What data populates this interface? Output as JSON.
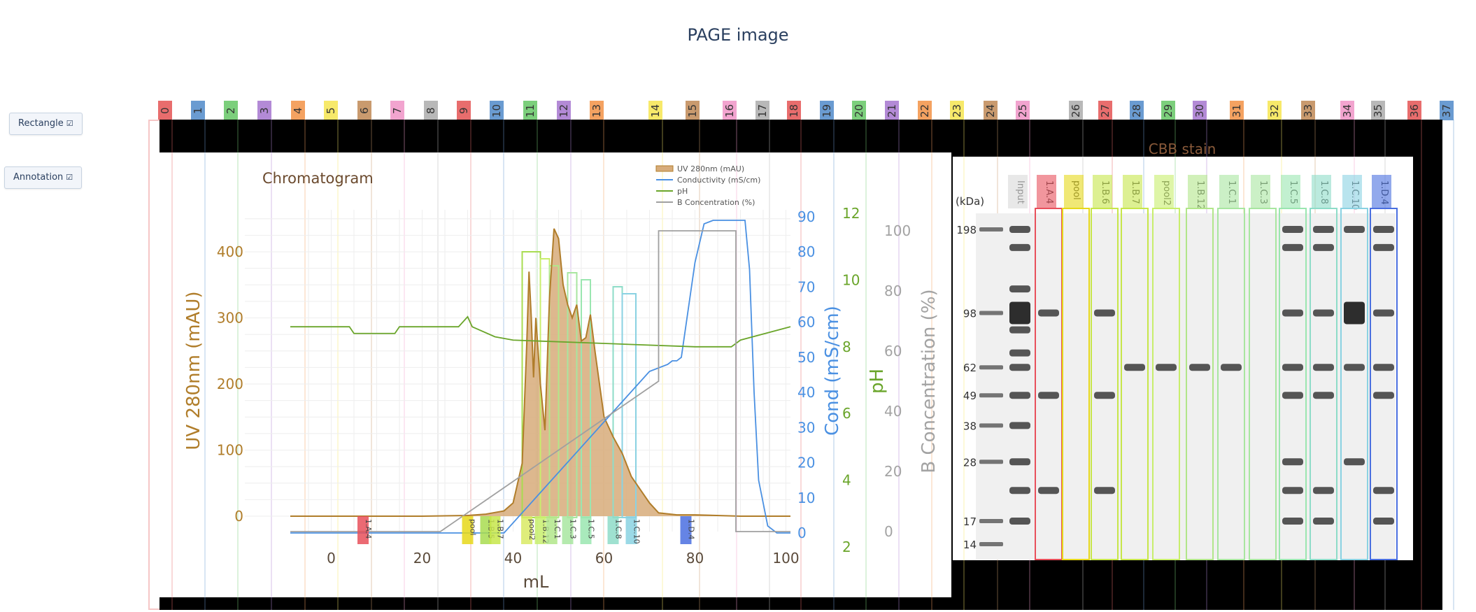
{
  "header": {
    "title": "PAGE image"
  },
  "controls": {
    "rectangle_label": "Rectangle",
    "annotation_label": "Annotation",
    "checkbox_glyph": "☑"
  },
  "lane_tags": [
    {
      "label": "0",
      "color": "#e86d6d"
    },
    {
      "label": "1",
      "color": "#6a9bd1"
    },
    {
      "label": "2",
      "color": "#7ccf7c"
    },
    {
      "label": "3",
      "color": "#b38ad6"
    },
    {
      "label": "4",
      "color": "#f4a261"
    },
    {
      "label": "5",
      "color": "#f7e96a"
    },
    {
      "label": "6",
      "color": "#c99a6e"
    },
    {
      "label": "7",
      "color": "#f2a4cf"
    },
    {
      "label": "8",
      "color": "#b8b8b8"
    },
    {
      "label": "9",
      "color": "#e86d6d"
    },
    {
      "label": "10",
      "color": "#6a9bd1"
    },
    {
      "label": "11",
      "color": "#7ccf7c"
    },
    {
      "label": "12",
      "color": "#b38ad6"
    },
    {
      "label": "13",
      "color": "#f4a261"
    },
    {
      "label": "14",
      "color": "#f7e96a"
    },
    {
      "label": "15",
      "color": "#c99a6e"
    },
    {
      "label": "16",
      "color": "#f2a4cf"
    },
    {
      "label": "17",
      "color": "#b8b8b8"
    },
    {
      "label": "18",
      "color": "#e86d6d"
    },
    {
      "label": "19",
      "color": "#6a9bd1"
    },
    {
      "label": "20",
      "color": "#7ccf7c"
    },
    {
      "label": "21",
      "color": "#b38ad6"
    },
    {
      "label": "22",
      "color": "#f4a261"
    },
    {
      "label": "23",
      "color": "#f7e96a"
    },
    {
      "label": "24",
      "color": "#c99a6e"
    },
    {
      "label": "25",
      "color": "#f2a4cf"
    },
    {
      "label": "26",
      "color": "#b8b8b8"
    },
    {
      "label": "27",
      "color": "#e86d6d"
    },
    {
      "label": "28",
      "color": "#6a9bd1"
    },
    {
      "label": "29",
      "color": "#7ccf7c"
    },
    {
      "label": "30",
      "color": "#b38ad6"
    },
    {
      "label": "31",
      "color": "#f4a261"
    },
    {
      "label": "32",
      "color": "#f7e96a"
    },
    {
      "label": "33",
      "color": "#c99a6e"
    },
    {
      "label": "34",
      "color": "#f2a4cf"
    },
    {
      "label": "35",
      "color": "#b8b8b8"
    },
    {
      "label": "36",
      "color": "#e86d6d"
    },
    {
      "label": "37",
      "color": "#6a9bd1"
    }
  ],
  "chart_data": {
    "type": "line",
    "title": "Chromatogram",
    "xlabel": "mL",
    "xlim": [
      -9,
      101
    ],
    "xticks": [
      0,
      20,
      40,
      60,
      80,
      100
    ],
    "axes": {
      "uv": {
        "label": "UV 280nm (mAU)",
        "range": [
          -30,
          460
        ],
        "ticks": [
          0,
          100,
          200,
          300,
          400
        ],
        "color": "#b07d2a"
      },
      "cond": {
        "label": "Cond (mS/cm)",
        "range": [
          -5,
          95
        ],
        "ticks": [
          0,
          10,
          20,
          30,
          40,
          50,
          60,
          70,
          80,
          90
        ],
        "color": "#4a90e2"
      },
      "ph": {
        "label": "pH",
        "range": [
          1.5,
          13
        ],
        "ticks": [
          2,
          4,
          6,
          8,
          10,
          12
        ],
        "color": "#6aa52a"
      },
      "b": {
        "label": "B Concentration (%)",
        "range": [
          -5,
          108
        ],
        "ticks": [
          0,
          20,
          40,
          60,
          80,
          100
        ],
        "color": "#a3a3a3"
      }
    },
    "legend": [
      "UV 280nm (mAU)",
      "Conductivity (mS/cm)",
      "pH",
      "B Concentration (%)"
    ],
    "series": [
      {
        "name": "UV 280nm (mAU)",
        "axis": "uv",
        "color": "#b07d2a",
        "fill": "#d7ac7a",
        "x": [
          -9,
          0,
          10,
          20,
          30,
          34,
          38,
          40,
          42,
          43,
          43.5,
          44,
          44.5,
          45,
          46,
          47,
          48,
          49,
          50,
          51,
          52,
          53,
          54,
          55,
          56,
          57,
          58,
          60,
          62,
          64,
          66,
          68,
          70,
          72,
          76,
          80,
          90,
          101
        ],
        "y": [
          0,
          0,
          0,
          0,
          1,
          3,
          8,
          20,
          80,
          260,
          370,
          300,
          210,
          300,
          200,
          130,
          330,
          435,
          420,
          350,
          320,
          300,
          320,
          265,
          270,
          305,
          250,
          150,
          120,
          95,
          60,
          40,
          20,
          5,
          2,
          2,
          0,
          0
        ]
      },
      {
        "name": "Conductivity (mS/cm)",
        "axis": "cond",
        "color": "#4a90e2",
        "x": [
          -9,
          24,
          34,
          38,
          70,
          74,
          75,
          76,
          77,
          78,
          79,
          80,
          82,
          84,
          86,
          89,
          91,
          92,
          93,
          94,
          96,
          98,
          101
        ],
        "y": [
          0,
          0,
          0,
          0,
          46,
          48,
          49,
          49,
          50,
          59,
          68,
          77,
          88,
          89,
          89,
          89,
          89,
          75,
          40,
          15,
          2,
          0,
          0
        ]
      },
      {
        "name": "pH",
        "axis": "ph",
        "color": "#6aa52a",
        "x": [
          -9,
          4,
          5,
          14,
          15,
          28,
          30,
          31,
          36,
          40,
          60,
          80,
          88,
          90,
          101
        ],
        "y": [
          8.6,
          8.6,
          8.4,
          8.4,
          8.6,
          8.6,
          8.9,
          8.6,
          8.3,
          8.2,
          8.1,
          8.0,
          8.0,
          8.2,
          8.6
        ]
      },
      {
        "name": "B Concentration (%)",
        "axis": "b",
        "color": "#a0a0a0",
        "x": [
          -9,
          24,
          72,
          72,
          89,
          89,
          101
        ],
        "y": [
          0,
          0,
          50,
          100,
          100,
          0,
          0
        ]
      }
    ],
    "fraction_markers": [
      {
        "label": "1.A.4",
        "x": 7,
        "color": "#e8505b"
      },
      {
        "label": "pool",
        "x": 30,
        "color": "#e6d81a"
      },
      {
        "label": "1.B.5",
        "x": 34,
        "color": "#a8dc50"
      },
      {
        "label": "1.B.7",
        "x": 36,
        "color": "#c7e64a"
      },
      {
        "label": "pool2",
        "x": 43,
        "color": "#d9ea64"
      },
      {
        "label": "1.B.12",
        "x": 46,
        "color": "#c8ee6c"
      },
      {
        "label": "1.C.1",
        "x": 48.5,
        "color": "#b2e68a"
      },
      {
        "label": "1.C.3",
        "x": 52,
        "color": "#a8e6a0"
      },
      {
        "label": "1.C.5",
        "x": 56,
        "color": "#9ae6b0"
      },
      {
        "label": "1.C.8",
        "x": 62,
        "color": "#8edcc8"
      },
      {
        "label": "1.C.10",
        "x": 66,
        "color": "#8ad2e2"
      },
      {
        "label": "1.D.4",
        "x": 78,
        "color": "#4a6fe0"
      }
    ],
    "pool_boxes": [
      {
        "x0": 42,
        "x1": 46,
        "color": "#a8dc50"
      },
      {
        "x0": 46,
        "x1": 48,
        "color": "#c8ee6c"
      },
      {
        "x0": 48,
        "x1": 50,
        "color": "#b2e68a"
      },
      {
        "x0": 52,
        "x1": 54,
        "color": "#a8e6a0"
      },
      {
        "x0": 55,
        "x1": 57,
        "color": "#9ae6b0"
      },
      {
        "x0": 62,
        "x1": 64,
        "color": "#8edcc8"
      },
      {
        "x0": 64,
        "x1": 67,
        "color": "#8ad2e2"
      }
    ]
  },
  "gel": {
    "title": "CBB stain",
    "unit_label": "(kDa)",
    "markers": [
      {
        "label": "198",
        "kda": 198
      },
      {
        "label": "98",
        "kda": 98
      },
      {
        "label": "62",
        "kda": 62
      },
      {
        "label": "49",
        "kda": 49
      },
      {
        "label": "38",
        "kda": 38
      },
      {
        "label": "28",
        "kda": 28
      },
      {
        "label": "17",
        "kda": 17
      },
      {
        "label": "14",
        "kda": 14
      }
    ],
    "lanes": [
      {
        "label": "Input",
        "color": "#d8d8d8"
      },
      {
        "label": "1.A.4",
        "color": "#e8505b"
      },
      {
        "label": "pool",
        "color": "#e6d81a"
      },
      {
        "label": "1.B.6",
        "color": "#c7e64a"
      },
      {
        "label": "1.B.7",
        "color": "#c7e64a"
      },
      {
        "label": "pool2",
        "color": "#c8ee6c"
      },
      {
        "label": "1.B.12",
        "color": "#b2e68a"
      },
      {
        "label": "1.C.1",
        "color": "#a8e6a0"
      },
      {
        "label": "1.C.3",
        "color": "#a8e6a0"
      },
      {
        "label": "1.C.5",
        "color": "#9ae6b0"
      },
      {
        "label": "1.C.8",
        "color": "#8edcc8"
      },
      {
        "label": "1.C.10",
        "color": "#8ad2e2"
      },
      {
        "label": "1.D.4",
        "color": "#4a6fe0"
      }
    ]
  }
}
